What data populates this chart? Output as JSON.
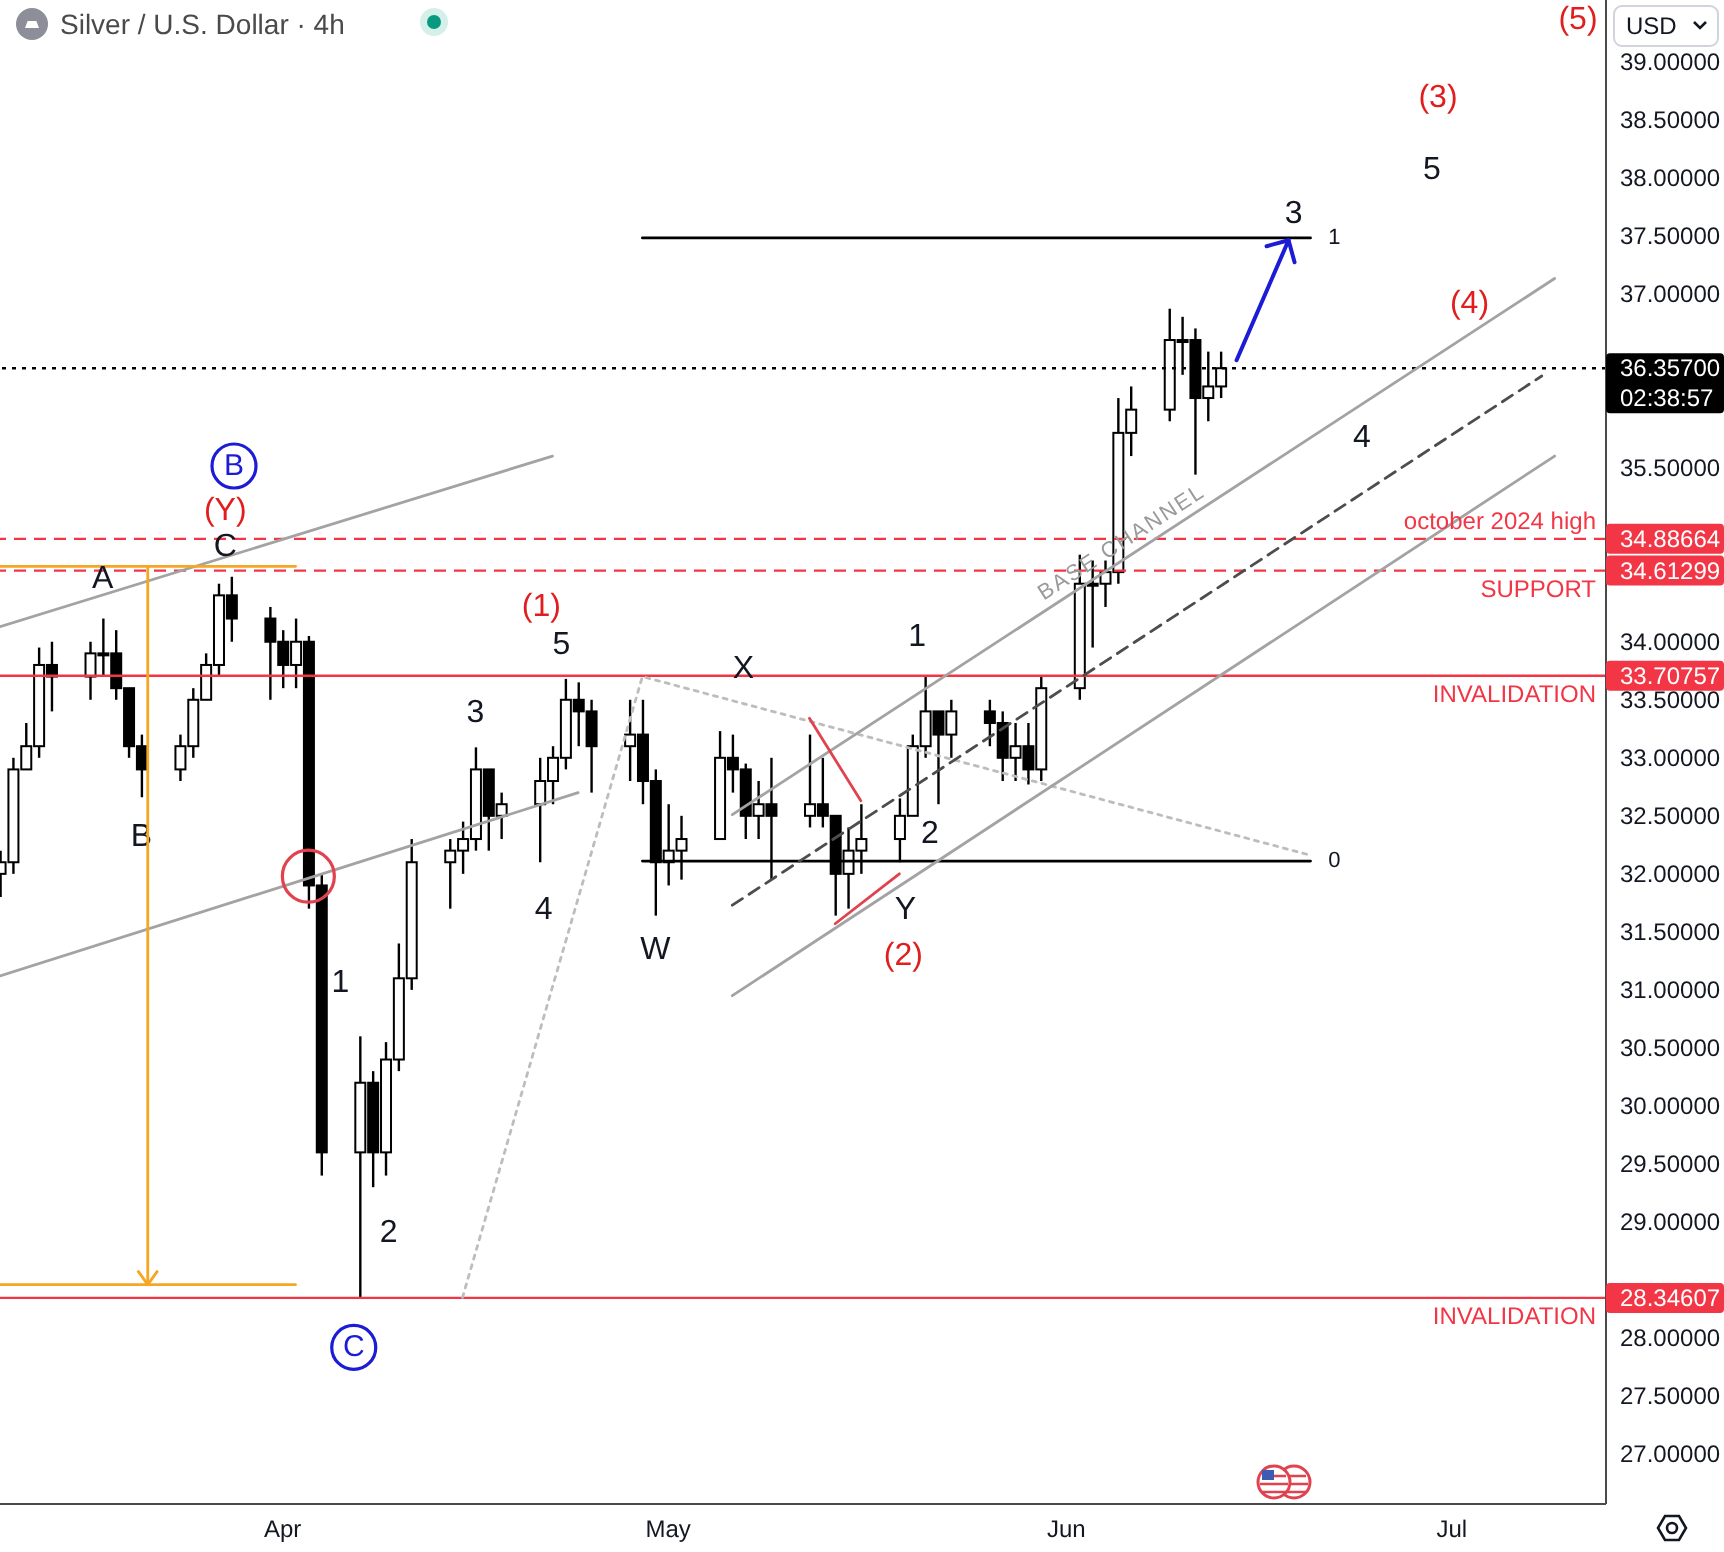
{
  "chart_data": {
    "type": "candlestick",
    "title": "Silver / U.S. Dollar · 4h",
    "ylabel": "USD",
    "color": "#000000",
    "x": [
      "--03-10",
      "--03-11",
      "--03-12",
      "--03-13",
      "--03-14",
      "--03-17",
      "--03-18",
      "--03-19",
      "--03-20",
      "--03-21",
      "--03-24",
      "--03-25",
      "--03-26",
      "--03-27",
      "--03-28",
      "--03-31",
      "--04-01",
      "--04-02",
      "--04-03",
      "--04-04",
      "--04-07",
      "--04-08",
      "--04-09",
      "--04-10",
      "--04-11",
      "--04-14",
      "--04-15",
      "--04-16",
      "--04-17",
      "--04-18",
      "--04-21",
      "--04-22",
      "--04-23",
      "--04-24",
      "--04-25",
      "--04-28",
      "--04-29",
      "--04-30",
      "--05-01",
      "--05-02",
      "--05-05",
      "--05-06",
      "--05-07",
      "--05-08",
      "--05-09",
      "--05-12",
      "--05-13",
      "--05-14",
      "--05-15",
      "--05-16",
      "--05-19",
      "--05-20",
      "--05-21",
      "--05-22",
      "--05-23",
      "--05-26",
      "--05-27",
      "--05-28",
      "--05-29",
      "--05-30",
      "--06-02",
      "--06-03",
      "--06-04",
      "--06-05",
      "--06-06",
      "--06-09",
      "--06-10",
      "--06-11",
      "--06-12",
      "--06-13"
    ],
    "ohlc": [
      [
        32.0,
        32.2,
        31.8,
        32.1
      ],
      [
        32.1,
        33.0,
        32.0,
        32.9
      ],
      [
        32.9,
        33.3,
        32.9,
        33.1
      ],
      [
        33.1,
        33.95,
        33.0,
        33.8
      ],
      [
        33.8,
        34.0,
        33.4,
        33.7
      ],
      [
        33.7,
        34.0,
        33.5,
        33.9
      ],
      [
        33.9,
        34.2,
        33.7,
        33.9
      ],
      [
        33.9,
        34.1,
        33.5,
        33.6
      ],
      [
        33.6,
        33.6,
        33.0,
        33.1
      ],
      [
        33.1,
        33.2,
        32.66,
        32.9
      ],
      [
        32.9,
        33.2,
        32.8,
        33.1
      ],
      [
        33.1,
        33.6,
        33.0,
        33.5
      ],
      [
        33.5,
        33.9,
        33.5,
        33.8
      ],
      [
        33.8,
        34.5,
        33.7,
        34.4
      ],
      [
        34.4,
        34.56,
        34.0,
        34.2
      ],
      [
        34.2,
        34.3,
        33.5,
        34.0
      ],
      [
        34.0,
        34.1,
        33.6,
        33.8
      ],
      [
        33.8,
        34.2,
        33.6,
        34.0
      ],
      [
        34.0,
        34.05,
        31.7,
        31.9
      ],
      [
        31.9,
        32.0,
        29.4,
        29.6
      ],
      [
        29.6,
        30.6,
        28.35,
        30.2
      ],
      [
        30.2,
        30.3,
        29.3,
        29.6
      ],
      [
        29.6,
        30.55,
        29.4,
        30.4
      ],
      [
        30.4,
        31.4,
        30.3,
        31.1
      ],
      [
        31.1,
        32.3,
        31.0,
        32.1
      ],
      [
        32.1,
        32.3,
        31.7,
        32.2
      ],
      [
        32.2,
        32.45,
        32.0,
        32.3
      ],
      [
        32.3,
        33.09,
        32.2,
        32.9
      ],
      [
        32.9,
        32.9,
        32.2,
        32.5
      ],
      [
        32.5,
        32.7,
        32.3,
        32.6
      ],
      [
        32.6,
        33.0,
        32.1,
        32.8
      ],
      [
        32.8,
        33.1,
        32.6,
        33.0
      ],
      [
        33.0,
        33.68,
        32.9,
        33.5
      ],
      [
        33.5,
        33.65,
        33.1,
        33.4
      ],
      [
        33.4,
        33.5,
        32.7,
        33.1
      ],
      [
        33.1,
        33.5,
        32.8,
        33.2
      ],
      [
        33.2,
        33.5,
        32.6,
        32.8
      ],
      [
        32.8,
        32.9,
        31.64,
        32.1
      ],
      [
        32.1,
        32.6,
        31.9,
        32.2
      ],
      [
        32.2,
        32.5,
        31.95,
        32.3
      ],
      [
        32.3,
        33.23,
        32.3,
        33.0
      ],
      [
        33.0,
        33.2,
        32.7,
        32.9
      ],
      [
        32.9,
        32.95,
        32.3,
        32.5
      ],
      [
        32.5,
        32.8,
        32.3,
        32.6
      ],
      [
        32.6,
        33.0,
        31.95,
        32.5
      ],
      [
        32.5,
        33.2,
        32.4,
        32.6
      ],
      [
        32.6,
        33.0,
        32.4,
        32.5
      ],
      [
        32.5,
        32.5,
        31.64,
        32.0
      ],
      [
        32.0,
        32.4,
        31.7,
        32.2
      ],
      [
        32.2,
        32.6,
        32.0,
        32.3
      ],
      [
        32.3,
        32.65,
        32.1,
        32.5
      ],
      [
        32.5,
        33.2,
        32.5,
        33.1
      ],
      [
        33.1,
        33.7,
        33.0,
        33.4
      ],
      [
        33.4,
        33.4,
        32.6,
        33.2
      ],
      [
        33.2,
        33.5,
        33.0,
        33.4
      ],
      [
        33.4,
        33.5,
        33.1,
        33.3
      ],
      [
        33.3,
        33.4,
        32.8,
        33.0
      ],
      [
        33.0,
        33.3,
        32.8,
        33.1
      ],
      [
        33.1,
        33.3,
        32.77,
        32.9
      ],
      [
        32.9,
        33.7,
        32.8,
        33.6
      ],
      [
        33.6,
        34.75,
        33.5,
        34.5
      ],
      [
        34.5,
        34.7,
        33.95,
        34.5
      ],
      [
        34.5,
        34.7,
        34.3,
        34.6
      ],
      [
        34.6,
        36.1,
        34.5,
        35.8
      ],
      [
        35.8,
        36.2,
        35.6,
        36.0
      ],
      [
        36.0,
        36.87,
        35.9,
        36.6
      ],
      [
        36.6,
        36.8,
        36.3,
        36.6
      ],
      [
        36.6,
        36.7,
        35.44,
        36.1
      ],
      [
        36.1,
        36.5,
        35.9,
        36.2
      ],
      [
        36.2,
        36.5,
        36.1,
        36.357
      ]
    ],
    "series": [
      {
        "type": "line",
        "x": [
          "--03-10",
          "--04-22"
        ],
        "values": [
          34.13,
          35.6
        ],
        "color": "#a3a3a3"
      },
      {
        "type": "line",
        "x": [
          "--03-10",
          "--04-24"
        ],
        "values": [
          31.12,
          32.7
        ],
        "color": "#a3a3a3"
      },
      {
        "type": "line",
        "x": [
          "--04-15",
          "--04-29",
          "--06-20"
        ],
        "values": [
          28.35,
          33.7,
          32.16
        ],
        "color": "#bdbdbd",
        "line_style": "dotted"
      },
      {
        "type": "line",
        "x": [
          "--04-29",
          "--06-20"
        ],
        "values": [
          37.48,
          37.48
        ],
        "color": "#000000"
      },
      {
        "type": "line",
        "x": [
          "--04-29",
          "--06-20"
        ],
        "values": [
          32.11,
          32.11
        ],
        "color": "#000000"
      },
      {
        "type": "line",
        "x": [
          "--05-06",
          "--07-09"
        ],
        "values": [
          32.51,
          37.13
        ],
        "color": "#a3a3a3"
      },
      {
        "type": "line",
        "x": [
          "--05-06",
          "--07-08"
        ],
        "values": [
          31.73,
          36.29
        ],
        "color": "#4d4d4d",
        "line_style": "dashed"
      },
      {
        "type": "line",
        "x": [
          "--05-06",
          "--07-09"
        ],
        "values": [
          30.95,
          35.6
        ],
        "color": "#a3a3a3"
      },
      {
        "type": "line",
        "x": [
          "--05-12",
          "--05-16"
        ],
        "values": [
          33.34,
          32.63
        ],
        "color": "#e0434f"
      },
      {
        "type": "line",
        "x": [
          "--05-14",
          "--05-19"
        ],
        "values": [
          31.57,
          32.0
        ],
        "color": "#e0434f"
      },
      {
        "type": "line",
        "x": [
          "--03-10",
          "--04-02"
        ],
        "values": [
          34.65,
          34.65
        ],
        "color": "#f5a623"
      },
      {
        "type": "line",
        "x": [
          "--03-10",
          "--04-02"
        ],
        "values": [
          28.46,
          28.46
        ],
        "color": "#f5a623"
      },
      {
        "type": "scatter",
        "x": [
          "--04-03"
        ],
        "values": [
          31.98
        ],
        "color": "#e0434f",
        "marker": "circle"
      }
    ],
    "xlim": [
      "--03-10",
      "--07-13"
    ],
    "xticks": [
      {
        "value": "--04-01",
        "label": "Apr"
      },
      {
        "value": "--05-01",
        "label": "May"
      },
      {
        "value": "--06-01",
        "label": "Jun"
      },
      {
        "value": "--07-01",
        "label": "Jul"
      }
    ],
    "ylim": [
      26.57,
      39.53
    ],
    "yticks": [
      {
        "value": 27,
        "label": "27.00000"
      },
      {
        "value": 27.5,
        "label": "27.50000"
      },
      {
        "value": 28,
        "label": "28.00000"
      },
      28.34607,
      {
        "value": 29,
        "label": "29.00000"
      },
      {
        "value": 29.5,
        "label": "29.50000"
      },
      {
        "value": 30,
        "label": "30.00000"
      },
      {
        "value": 30.5,
        "label": "30.50000"
      },
      {
        "value": 31,
        "label": "31.00000"
      },
      {
        "value": 31.5,
        "label": "31.50000"
      },
      {
        "value": 32,
        "label": "32.00000"
      },
      {
        "value": 32.5,
        "label": "32.50000"
      },
      {
        "value": 33,
        "label": "33.00000"
      },
      {
        "value": 33.5,
        "label": "33.50000"
      },
      33.70757,
      {
        "value": 34,
        "label": "34.00000"
      },
      34.61299,
      34.88664,
      {
        "value": 35.5,
        "label": "35.50000"
      },
      {
        "value": 36.357,
        "label": "36.35700"
      },
      {
        "value": 37,
        "label": "37.00000"
      },
      {
        "value": 37.5,
        "label": "37.50000"
      },
      {
        "value": 38,
        "label": "38.00000"
      },
      {
        "value": 38.5,
        "label": "38.50000"
      },
      {
        "value": 39,
        "label": "39.00000"
      }
    ],
    "ref_lines": [
      {
        "axis": "y",
        "value": 36.357,
        "color": "#000000",
        "line_style": "dotted"
      },
      {
        "axis": "y",
        "value": 34.88664,
        "label": "october 2024 high",
        "color": "#f23645",
        "line_style": "dashed"
      },
      {
        "axis": "y",
        "value": 34.61299,
        "label": "SUPPORT",
        "color": "#f23645",
        "line_style": "dashed"
      },
      {
        "axis": "y",
        "value": 33.70757,
        "label": "INVALIDATION",
        "color": "#f23645",
        "line_style": "solid"
      },
      {
        "axis": "y",
        "value": 28.34607,
        "label": "INVALIDATION",
        "color": "#f23645",
        "line_style": "solid"
      }
    ],
    "annotations": [
      {
        "text": "A",
        "x": "--03-18",
        "y": 34.2
      },
      {
        "text": "B",
        "x": "--03-21",
        "y": 32.66
      },
      {
        "text": "C",
        "x": "--03-28",
        "y": 34.56
      },
      {
        "text": "(Y)",
        "x": "--03-28",
        "y": 34.56
      },
      "B",
      {
        "text": "C",
        "x": "--04-07",
        "y": 28.35
      },
      {
        "text": "1",
        "x": "--04-03",
        "y": 31.7
      },
      {
        "text": "2",
        "x": "--04-08",
        "y": 29.3
      },
      {
        "text": "3",
        "x": "--04-16",
        "y": 33.09
      },
      {
        "text": "4",
        "x": "--04-21",
        "y": 32.1
      },
      {
        "text": "5",
        "x": "--04-23",
        "y": 33.68
      },
      {
        "text": "(1)",
        "x": "--04-23",
        "y": 33.68
      },
      {
        "text": "W",
        "x": "--04-30",
        "y": 31.64
      },
      {
        "text": "X",
        "x": "--05-05",
        "y": 33.23
      },
      {
        "text": "Y",
        "x": "--05-19",
        "y": 32.0
      },
      {
        "text": "(2)",
        "x": "--05-19",
        "y": 32.0
      },
      {
        "text": "1",
        "x": "--05-21",
        "y": 33.7
      },
      {
        "text": "2",
        "x": "--05-22",
        "y": 32.6
      },
      {
        "text": "3",
        "x": "--06-19",
        "y": 37.48
      },
      {
        "text": "1",
        "x": "--06-20",
        "y": 37.48
      },
      {
        "text": "0",
        "x": "--06-20",
        "y": 32.11
      },
      {
        "text": "4",
        "x": "--06-24",
        "y": 36.05
      },
      {
        "text": "(4)",
        "x": "--07-03",
        "y": 36.7
      },
      "5",
      "(3)",
      "(5)",
      {
        "text": "BASE CHANNEL",
        "x": "--06-05",
        "y": 34.68
      },
      "02:38:57"
    ]
  }
}
